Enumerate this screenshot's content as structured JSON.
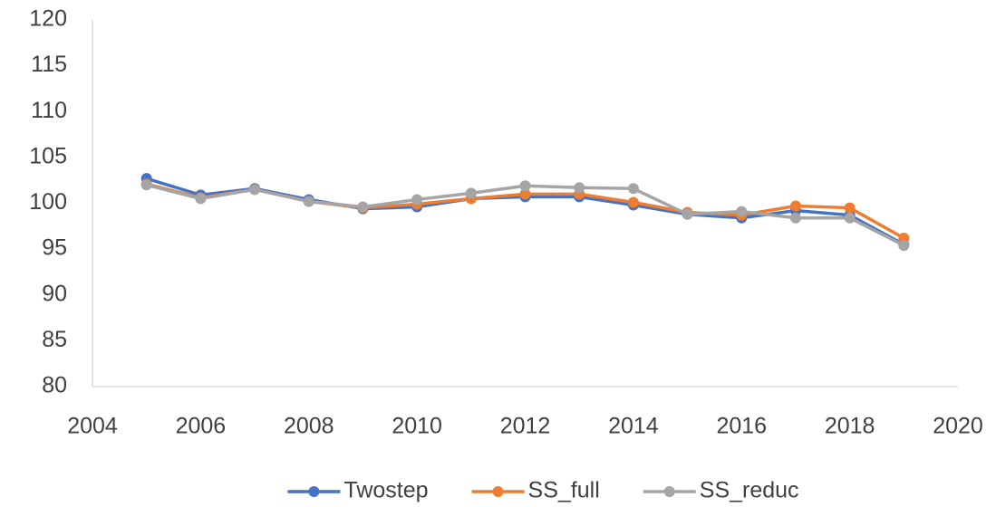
{
  "chart_data": {
    "type": "line",
    "x": [
      2005,
      2006,
      2007,
      2008,
      2009,
      2010,
      2011,
      2012,
      2013,
      2014,
      2015,
      2016,
      2017,
      2018,
      2019
    ],
    "series": [
      {
        "name": "Twostep",
        "color": "#4472c4",
        "values": [
          102.7,
          100.9,
          101.6,
          100.4,
          99.4,
          99.6,
          100.5,
          100.7,
          100.7,
          99.8,
          98.8,
          98.4,
          99.2,
          98.7,
          95.5
        ]
      },
      {
        "name": "SS_full",
        "color": "#ed7d31",
        "values": [
          102.1,
          100.6,
          101.5,
          100.2,
          99.5,
          99.9,
          100.5,
          101.0,
          101.0,
          100.1,
          99.0,
          98.7,
          99.7,
          99.5,
          96.2
        ]
      },
      {
        "name": "SS_reduc",
        "color": "#a5a5a5",
        "values": [
          102.0,
          100.5,
          101.5,
          100.2,
          99.6,
          100.4,
          101.1,
          101.9,
          101.7,
          101.6,
          98.8,
          99.1,
          98.4,
          98.4,
          95.4
        ]
      }
    ],
    "xlim": [
      2004,
      2020
    ],
    "xticks": [
      2004,
      2006,
      2008,
      2010,
      2012,
      2014,
      2016,
      2018,
      2020
    ],
    "ylim": [
      80,
      120
    ],
    "yticks": [
      80,
      85,
      90,
      95,
      100,
      105,
      110,
      115,
      120
    ],
    "grid": false,
    "legend": "bottom"
  }
}
